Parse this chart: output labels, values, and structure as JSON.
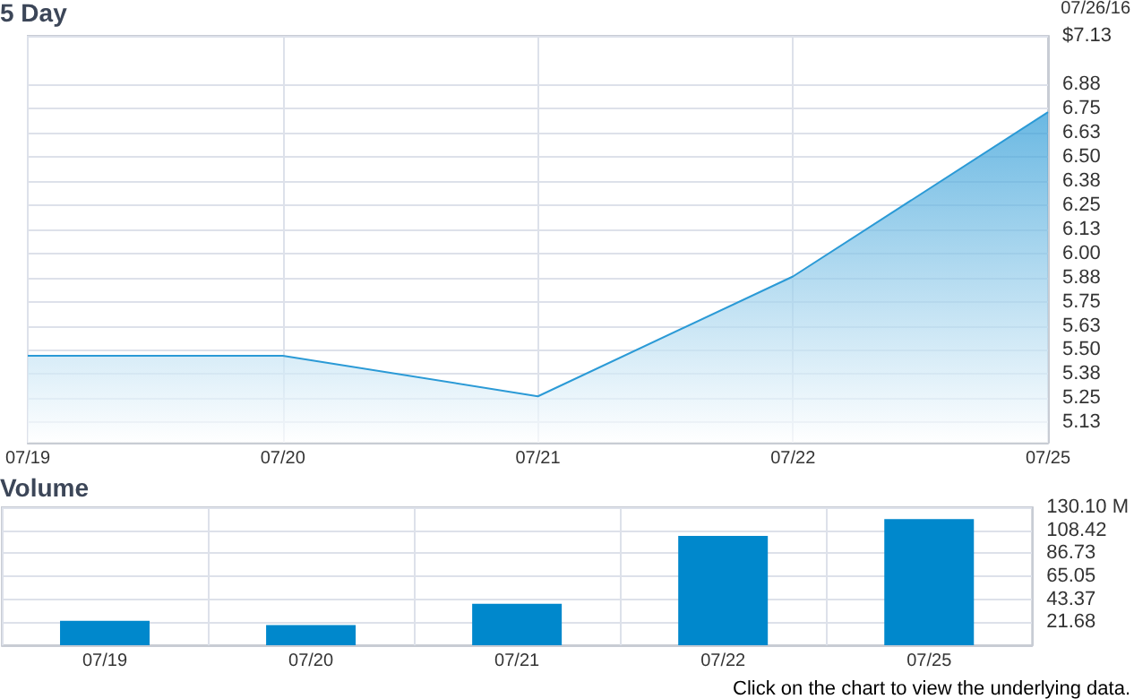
{
  "chart_data": [
    {
      "type": "area",
      "title": "5 Day",
      "subtitle": "07/26/16",
      "categories": [
        "07/19",
        "07/20",
        "07/21",
        "07/22",
        "07/25"
      ],
      "series": [
        {
          "color": "#2b9ad6",
          "values": [
            5.47,
            5.47,
            5.26,
            5.88,
            6.73
          ]
        }
      ],
      "ylim": [
        5.02,
        7.125
      ],
      "yticks": [
        {
          "value": 5.125,
          "label": "5.13"
        },
        5.25,
        {
          "value": 5.375,
          "label": "5.38"
        },
        {
          "value": 5.5,
          "label": "5.50"
        },
        {
          "value": 5.625,
          "label": "5.63"
        },
        5.75,
        {
          "value": 5.875,
          "label": "5.88"
        },
        {
          "value": 6,
          "label": "6.00"
        },
        {
          "value": 6.125,
          "label": "6.13"
        },
        6.25,
        {
          "value": 6.375,
          "label": "6.38"
        },
        {
          "value": 6.5,
          "label": "6.50"
        },
        {
          "value": 6.625,
          "label": "6.63"
        },
        6.75,
        {
          "value": 6.875,
          "label": "6.88"
        },
        {
          "value": 7.125,
          "label": "$7.13"
        }
      ],
      "grid": true,
      "marker": "none"
    },
    {
      "type": "bar",
      "title": "Volume",
      "categories": [
        "07/19",
        "07/20",
        "07/21",
        "07/22",
        "07/25"
      ],
      "series": [
        {
          "color": "#0088cc",
          "values": [
            23,
            19,
            39,
            103,
            119
          ]
        }
      ],
      "ylim": [
        0,
        130.1
      ],
      "yticks": [
        21.68,
        43.37,
        65.05,
        86.73,
        108.42,
        {
          "value": 130.1,
          "label": "130.10 M"
        }
      ],
      "annotations": [
        "Click on the chart to view the underlying data."
      ],
      "grid": true
    }
  ]
}
